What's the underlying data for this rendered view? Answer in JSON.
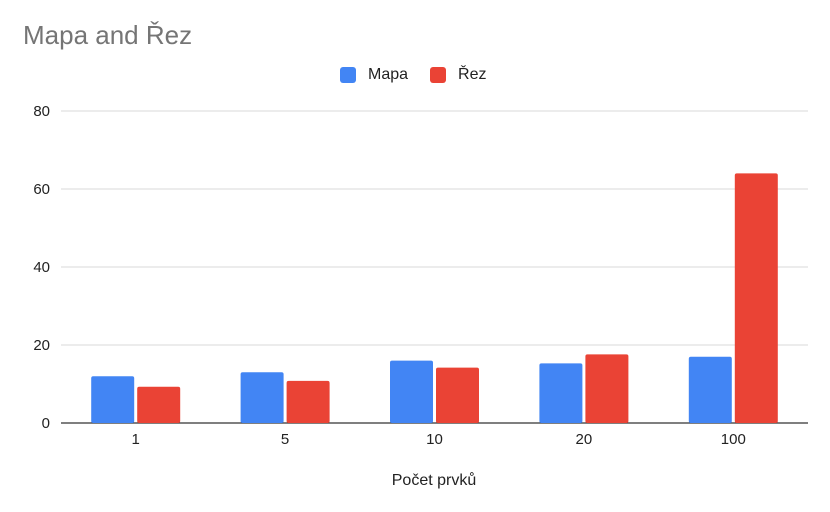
{
  "chart_data": {
    "type": "bar",
    "title": "Mapa and Řez",
    "xlabel": "Počet prvků",
    "ylabel": "",
    "categories": [
      "1",
      "5",
      "10",
      "20",
      "100"
    ],
    "series": [
      {
        "name": "Mapa",
        "color": "#4285f4",
        "values": [
          12,
          13,
          16,
          15.3,
          17
        ]
      },
      {
        "name": "Řez",
        "color": "#ea4335",
        "values": [
          9.3,
          10.8,
          14.2,
          17.6,
          64
        ]
      }
    ],
    "ylim": [
      0,
      80
    ],
    "yticks": [
      "0",
      "20",
      "40",
      "60",
      "80"
    ],
    "grid": true,
    "legend_position": "top-center"
  }
}
